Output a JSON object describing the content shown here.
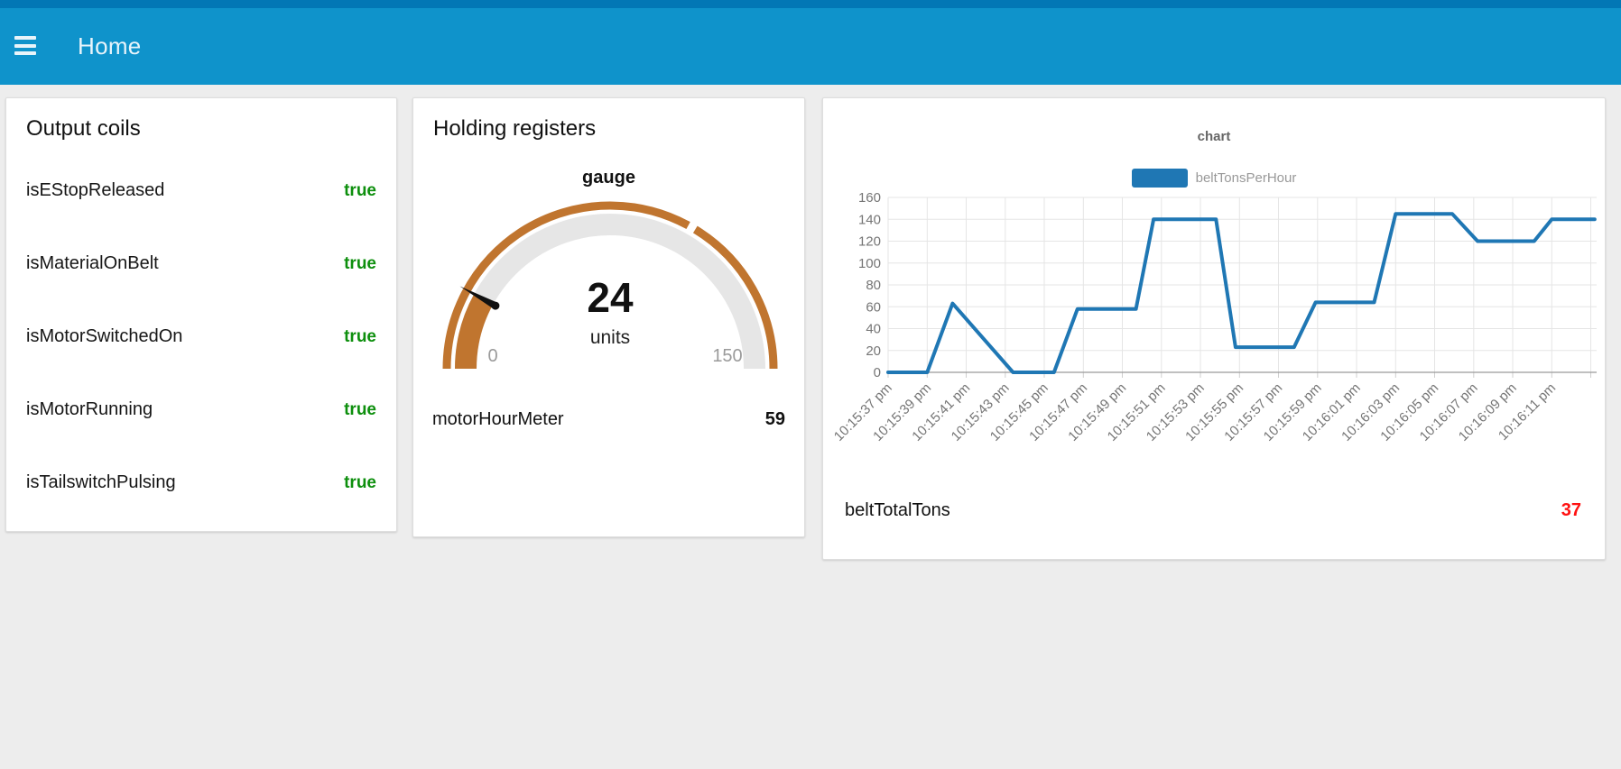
{
  "colors": {
    "header_blue": "#0f93cb",
    "header_strip": "#0277b5",
    "page_bg": "#ededed",
    "true_green": "#0d8f0d",
    "value_red": "#ff1111",
    "line_blue": "#1f77b4",
    "gauge_arc": "#c0752f",
    "gauge_track": "#e6e6e6"
  },
  "header": {
    "title": "Home",
    "menu_icon": "hamburger-icon"
  },
  "cards": {
    "output_coils": {
      "title": "Output coils",
      "rows": [
        {
          "label": "isEStopReleased",
          "value": "true"
        },
        {
          "label": "isMaterialOnBelt",
          "value": "true"
        },
        {
          "label": "isMotorSwitchedOn",
          "value": "true"
        },
        {
          "label": "isMotorRunning",
          "value": "true"
        },
        {
          "label": "isTailswitchPulsing",
          "value": "true"
        }
      ]
    },
    "holding_registers": {
      "title": "Holding registers",
      "gauge": {
        "label": "gauge",
        "value": 24,
        "units": "units",
        "min": 0,
        "max": 150,
        "notch_value": 100
      },
      "meter": {
        "label": "motorHourMeter",
        "value": 59
      }
    },
    "chart_card": {
      "total": {
        "label": "beltTotalTons",
        "value": 37
      }
    }
  },
  "chart_data": {
    "type": "line",
    "title": "chart",
    "legend_position": "top",
    "grid": true,
    "xlim": [
      0,
      36.3
    ],
    "ylim": [
      0,
      160
    ],
    "y_ticks": [
      0,
      20,
      40,
      60,
      80,
      100,
      120,
      140,
      160
    ],
    "x_tick_seconds": [
      0,
      2,
      4,
      6,
      8,
      10,
      12,
      14,
      16,
      18,
      20,
      22,
      24,
      26,
      28,
      30,
      32,
      34
    ],
    "x_tick_labels": [
      "10:15:37 pm",
      "10:15:39 pm",
      "10:15:41 pm",
      "10:15:43 pm",
      "10:15:45 pm",
      "10:15:47 pm",
      "10:15:49 pm",
      "10:15:51 pm",
      "10:15:53 pm",
      "10:15:55 pm",
      "10:15:57 pm",
      "10:15:59 pm",
      "10:16:01 pm",
      "10:16:03 pm",
      "10:16:05 pm",
      "10:16:07 pm",
      "10:16:09 pm",
      "10:16:11 pm"
    ],
    "series": [
      {
        "name": "beltTonsPerHour",
        "color": "#1f77b4",
        "points": [
          [
            0,
            0
          ],
          [
            2,
            0
          ],
          [
            3.3,
            63
          ],
          [
            6.4,
            0
          ],
          [
            8.5,
            0
          ],
          [
            9.7,
            58
          ],
          [
            12.7,
            58
          ],
          [
            13.6,
            140
          ],
          [
            16.8,
            140
          ],
          [
            17.8,
            23
          ],
          [
            20.8,
            23
          ],
          [
            21.9,
            64
          ],
          [
            24.9,
            64
          ],
          [
            26,
            145
          ],
          [
            28.9,
            145
          ],
          [
            30.2,
            120
          ],
          [
            33.1,
            120
          ],
          [
            34,
            140
          ],
          [
            36.2,
            140
          ]
        ]
      }
    ]
  }
}
